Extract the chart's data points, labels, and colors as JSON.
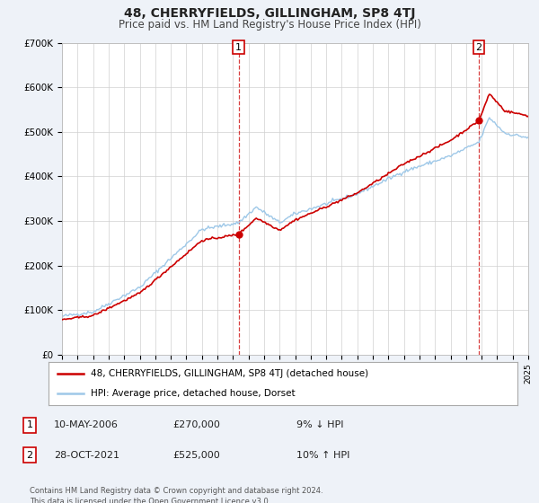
{
  "title": "48, CHERRYFIELDS, GILLINGHAM, SP8 4TJ",
  "subtitle": "Price paid vs. HM Land Registry's House Price Index (HPI)",
  "bg_color": "#eef2f8",
  "plot_bg_color": "#ffffff",
  "legend_line1": "48, CHERRYFIELDS, GILLINGHAM, SP8 4TJ (detached house)",
  "legend_line2": "HPI: Average price, detached house, Dorset",
  "sale1_date": "10-MAY-2006",
  "sale1_price": "£270,000",
  "sale1_hpi": "9% ↓ HPI",
  "sale2_date": "28-OCT-2021",
  "sale2_price": "£525,000",
  "sale2_hpi": "10% ↑ HPI",
  "footer": "Contains HM Land Registry data © Crown copyright and database right 2024.\nThis data is licensed under the Open Government Licence v3.0.",
  "sale1_year": 2006.36,
  "sale1_value": 270000,
  "sale2_year": 2021.83,
  "sale2_value": 525000,
  "property_color": "#cc0000",
  "hpi_color": "#9ec8e8",
  "marker_color": "#cc0000",
  "vline_color": "#cc0000",
  "ylim": [
    0,
    700000
  ],
  "xlim_start": 1995,
  "xlim_end": 2025
}
